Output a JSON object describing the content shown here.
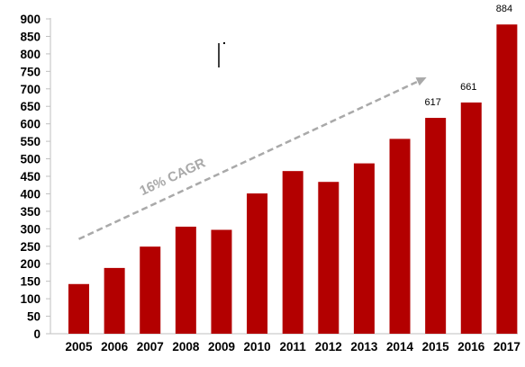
{
  "chart_data": {
    "type": "bar",
    "categories": [
      "2005",
      "2006",
      "2007",
      "2008",
      "2009",
      "2010",
      "2011",
      "2012",
      "2013",
      "2014",
      "2015",
      "2016",
      "2017"
    ],
    "values": [
      142,
      188,
      249,
      306,
      297,
      401,
      465,
      434,
      487,
      557,
      617,
      661,
      884
    ],
    "data_labels": [
      {
        "category": "2015",
        "text": "617"
      },
      {
        "category": "2016",
        "text": "661"
      },
      {
        "category": "2017",
        "text": "884"
      }
    ],
    "ylim": [
      0,
      900
    ],
    "yticks": [
      0,
      50,
      100,
      150,
      200,
      250,
      300,
      350,
      400,
      450,
      500,
      550,
      600,
      650,
      700,
      750,
      800,
      850,
      900
    ],
    "grid": false,
    "bar_color": "#b30000",
    "annotation": {
      "text": "16% CAGR",
      "from_category": "2005",
      "to_category": "2015"
    }
  }
}
